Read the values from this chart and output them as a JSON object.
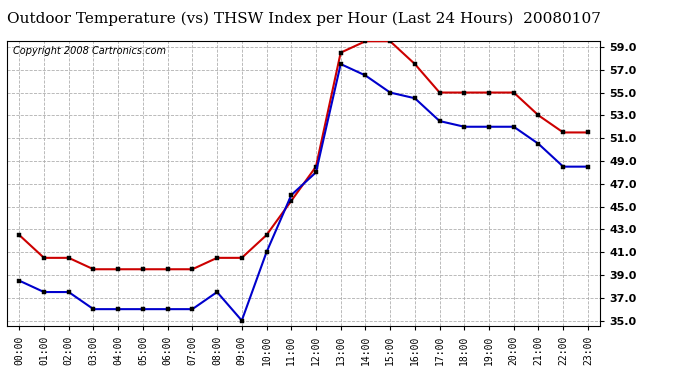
{
  "title": "Outdoor Temperature (vs) THSW Index per Hour (Last 24 Hours)  20080107",
  "copyright": "Copyright 2008 Cartronics.com",
  "hours": [
    "00:00",
    "01:00",
    "02:00",
    "03:00",
    "04:00",
    "05:00",
    "06:00",
    "07:00",
    "08:00",
    "09:00",
    "10:00",
    "11:00",
    "12:00",
    "13:00",
    "14:00",
    "15:00",
    "16:00",
    "17:00",
    "18:00",
    "19:00",
    "20:00",
    "21:00",
    "22:00",
    "23:00"
  ],
  "red_values": [
    42.5,
    40.5,
    40.5,
    39.5,
    39.5,
    39.5,
    39.5,
    39.5,
    40.5,
    40.5,
    42.5,
    45.5,
    48.5,
    58.5,
    59.5,
    59.5,
    57.5,
    55.0,
    55.0,
    55.0,
    55.0,
    53.0,
    51.5,
    51.5
  ],
  "blue_values": [
    38.5,
    37.5,
    37.5,
    36.0,
    36.0,
    36.0,
    36.0,
    36.0,
    37.5,
    35.0,
    41.0,
    46.0,
    48.0,
    57.5,
    56.5,
    55.0,
    54.5,
    52.5,
    52.0,
    52.0,
    52.0,
    50.5,
    48.5,
    48.5
  ],
  "ylim": [
    34.5,
    59.5
  ],
  "yticks": [
    35.0,
    37.0,
    39.0,
    41.0,
    43.0,
    45.0,
    47.0,
    49.0,
    51.0,
    53.0,
    55.0,
    57.0,
    59.0
  ],
  "red_color": "#cc0000",
  "blue_color": "#0000cc",
  "background_color": "#ffffff",
  "grid_color": "#b0b0b0",
  "title_fontsize": 11,
  "copyright_fontsize": 7
}
